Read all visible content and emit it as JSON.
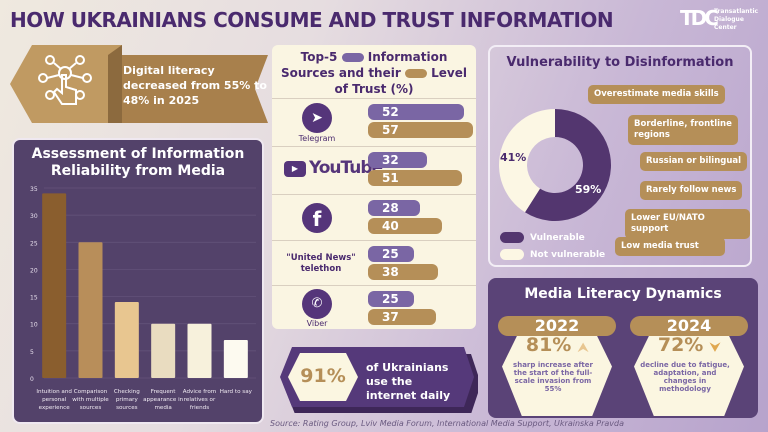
{
  "title": "HOW UKRAINIANS CONSUME AND TRUST INFORMATION",
  "logo": {
    "mark": "TDC",
    "text": [
      "Transatlantic",
      "Dialogue",
      "Center"
    ]
  },
  "banner": {
    "icon": "touch-network-icon",
    "text": "Digital literacy decreased from 55% to 48% in 2025"
  },
  "colors": {
    "purple": "#53426a",
    "dark_purple": "#4a2a6e",
    "tan": "#b58f58",
    "cream": "#faf5e2",
    "usage": "#7a66a4"
  },
  "chart_data": {
    "type": "bar",
    "title": "Assessment of Information Reliability from Media",
    "categories": [
      "Intuition and personal experience",
      "Comparison with multiple sources",
      "Checking primary sources",
      "Frequent appearance in media",
      "Advice from relatives or friends",
      "Hard to say"
    ],
    "values": [
      34,
      25,
      14,
      10,
      10,
      7
    ],
    "bar_colors": [
      "#8a5e2e",
      "#b88e5a",
      "#e8c690",
      "#e9dcc0",
      "#f7f1dc",
      "#fdfaf0"
    ],
    "ylim": [
      0,
      35
    ],
    "yticks": [
      0,
      5,
      10,
      15,
      20,
      25,
      30,
      35
    ],
    "grid": true
  },
  "sources": {
    "title_parts": [
      "Top-5",
      "Information",
      "Sources and their",
      "Level",
      "of Trust (%)"
    ],
    "legend": {
      "usage_color": "#7a66a4",
      "trust_color": "#b58f58"
    },
    "items": [
      {
        "name": "Telegram",
        "icon": "telegram-icon",
        "usage": 52,
        "trust": 57
      },
      {
        "name": "YouTube",
        "icon": "youtube-icon",
        "usage": 32,
        "trust": 51
      },
      {
        "name": "",
        "icon": "facebook-icon",
        "usage": 28,
        "trust": 40
      },
      {
        "name": "\"United News\" telethon",
        "icon": "",
        "usage": 25,
        "trust": 38
      },
      {
        "name": "Viber",
        "icon": "viber-icon",
        "usage": 25,
        "trust": 37
      }
    ]
  },
  "internet": {
    "value": "91%",
    "text": "of Ukrainians use the internet daily"
  },
  "vulnerability": {
    "title": "Vulnerability to Disinformation",
    "vulnerable_pct": 59,
    "not_vulnerable_pct": 41,
    "vulnerable_label": "59%",
    "not_vulnerable_label": "41%",
    "legend": [
      "Vulnerable",
      "Not vulnerable"
    ],
    "factors": [
      "Overestimate media skills",
      "Borderline, frontline regions",
      "Russian or bilingual",
      "Rarely follow news",
      "Lower EU/NATO support",
      "Low media trust"
    ]
  },
  "dynamics": {
    "title": "Media Literacy Dynamics",
    "items": [
      {
        "year": "2022",
        "value": "81%",
        "trend": "up",
        "desc": "sharp increase after the start of the full-scale invasion from 55%"
      },
      {
        "year": "2024",
        "value": "72%",
        "trend": "down",
        "desc": "decline due to fatigue, adaptation, and changes in methodology"
      }
    ]
  },
  "source": "Source: Rating Group, Lviv Media Forum, International Media Support, Ukrainska Pravda"
}
